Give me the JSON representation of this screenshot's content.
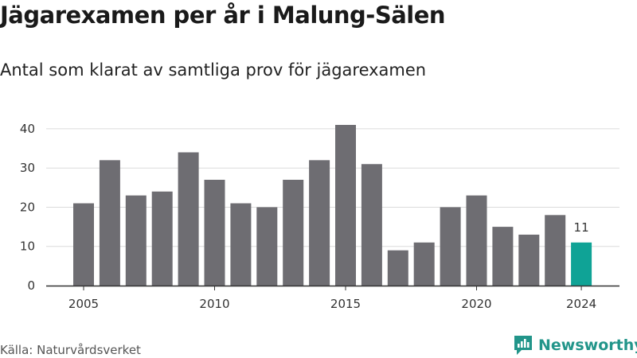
{
  "title": "Jägarexamen per år i Malung-Sälen",
  "subtitle": "Antal som klarat av samtliga prov för jägarexamen",
  "source": "Källa: Naturvårdsverket",
  "brand": {
    "name": "Newsworthy",
    "icon": "newsworthy-logo-icon",
    "color": "#22958a"
  },
  "colors": {
    "bar": "#6e6d72",
    "highlight": "#0fa396",
    "grid": "#dcdcdc",
    "axis": "#333333"
  },
  "chart_data": {
    "type": "bar",
    "x": [
      2005,
      2006,
      2007,
      2008,
      2009,
      2010,
      2011,
      2012,
      2013,
      2014,
      2015,
      2016,
      2017,
      2018,
      2019,
      2020,
      2021,
      2022,
      2023,
      2024
    ],
    "values": [
      21,
      32,
      23,
      24,
      34,
      27,
      21,
      20,
      27,
      32,
      41,
      31,
      9,
      11,
      20,
      23,
      15,
      13,
      18,
      11
    ],
    "highlight_x": 2024,
    "data_labels": [
      {
        "x": 2024,
        "text": "11"
      }
    ],
    "xticks": [
      2005,
      2010,
      2015,
      2020,
      2024
    ],
    "xtick_labels": [
      "2005",
      "2010",
      "2015",
      "2020",
      "2024"
    ],
    "yticks": [
      0,
      10,
      20,
      30,
      40
    ],
    "ytick_labels": [
      "0",
      "10",
      "20",
      "30",
      "40"
    ],
    "ylim": [
      0,
      41
    ],
    "xlabel": "",
    "ylabel": "",
    "grid": true
  }
}
